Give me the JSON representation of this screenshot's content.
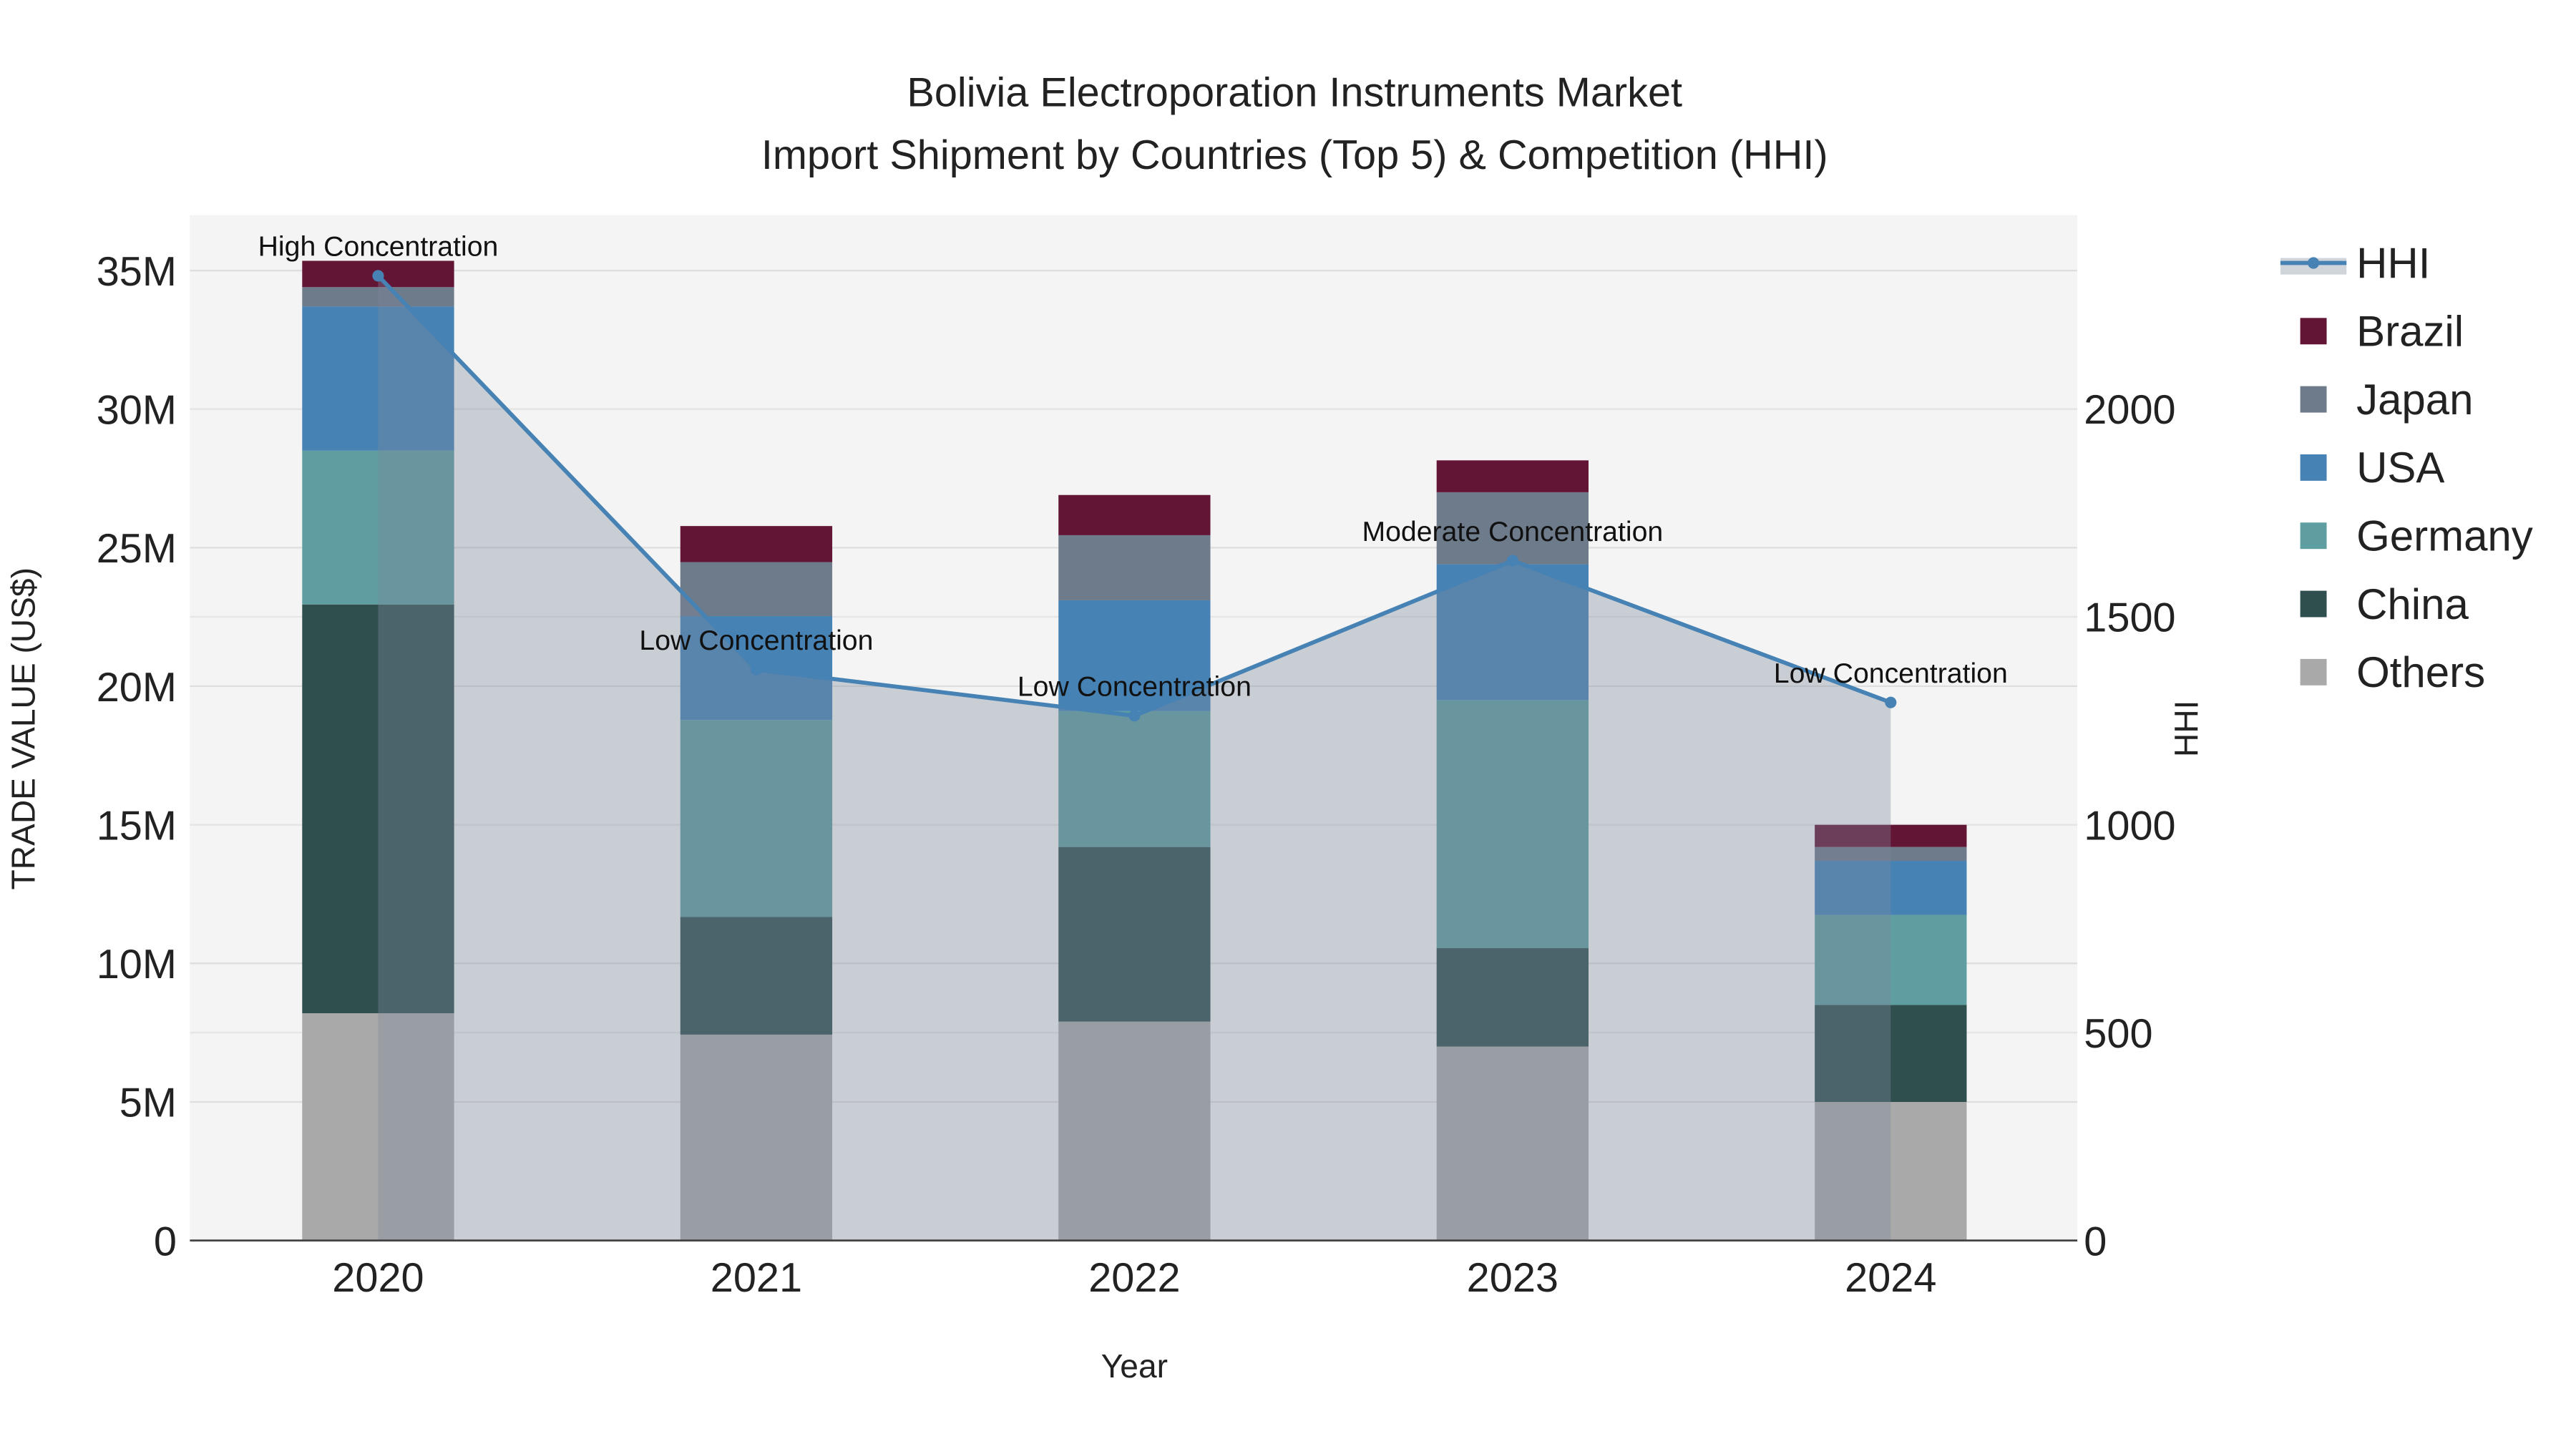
{
  "chart_data": {
    "type": "bar",
    "stacked": true,
    "title": "Bolivia Electroporation Instruments Market",
    "subtitle": "Import Shipment by Countries (Top 5) & Competition (HHI)",
    "xlabel": "Year",
    "ylabel": "TRADE VALUE (US$)",
    "y2label": "HHI",
    "categories": [
      "2020",
      "2021",
      "2022",
      "2023",
      "2024"
    ],
    "ylim": [
      0,
      37000000
    ],
    "y2lim": [
      0,
      2466
    ],
    "yticks": [
      {
        "v": 0,
        "label": "0"
      },
      {
        "v": 5000000,
        "label": "5M"
      },
      {
        "v": 10000000,
        "label": "10M"
      },
      {
        "v": 15000000,
        "label": "15M"
      },
      {
        "v": 20000000,
        "label": "20M"
      },
      {
        "v": 25000000,
        "label": "25M"
      },
      {
        "v": 30000000,
        "label": "30M"
      },
      {
        "v": 35000000,
        "label": "35M"
      }
    ],
    "y2ticks": [
      {
        "v": 0,
        "label": "0"
      },
      {
        "v": 500,
        "label": "500"
      },
      {
        "v": 1000,
        "label": "1000"
      },
      {
        "v": 1500,
        "label": "1500"
      },
      {
        "v": 2000,
        "label": "2000"
      }
    ],
    "series": [
      {
        "name": "Others",
        "color": "#a9a9a9",
        "values": [
          8200000,
          7430000,
          7900000,
          7000000,
          5000000
        ]
      },
      {
        "name": "China",
        "color": "#2f4f4f",
        "values": [
          14750000,
          4250000,
          6300000,
          3550000,
          3500000
        ]
      },
      {
        "name": "Germany",
        "color": "#5f9ea0",
        "values": [
          5550000,
          7100000,
          4900000,
          8950000,
          3250000
        ]
      },
      {
        "name": "USA",
        "color": "#4682b4",
        "values": [
          5200000,
          3750000,
          4000000,
          4900000,
          1950000
        ]
      },
      {
        "name": "Japan",
        "color": "#6e7b8b",
        "values": [
          700000,
          1950000,
          2350000,
          2600000,
          500000
        ]
      },
      {
        "name": "Brazil",
        "color": "#631536",
        "values": [
          950000,
          1300000,
          1450000,
          1150000,
          800000
        ]
      }
    ],
    "hhi": {
      "name": "HHI",
      "color": "#4682b4",
      "values": [
        2320,
        1373,
        1262,
        1635,
        1294
      ],
      "annotations": [
        "High Concentration",
        "Low Concentration",
        "Low Concentration",
        "Moderate Concentration",
        "Low Concentration"
      ]
    },
    "legend_order": [
      "HHI",
      "Brazil",
      "Japan",
      "USA",
      "Germany",
      "China",
      "Others"
    ],
    "legend_position": "right",
    "grid": true
  }
}
